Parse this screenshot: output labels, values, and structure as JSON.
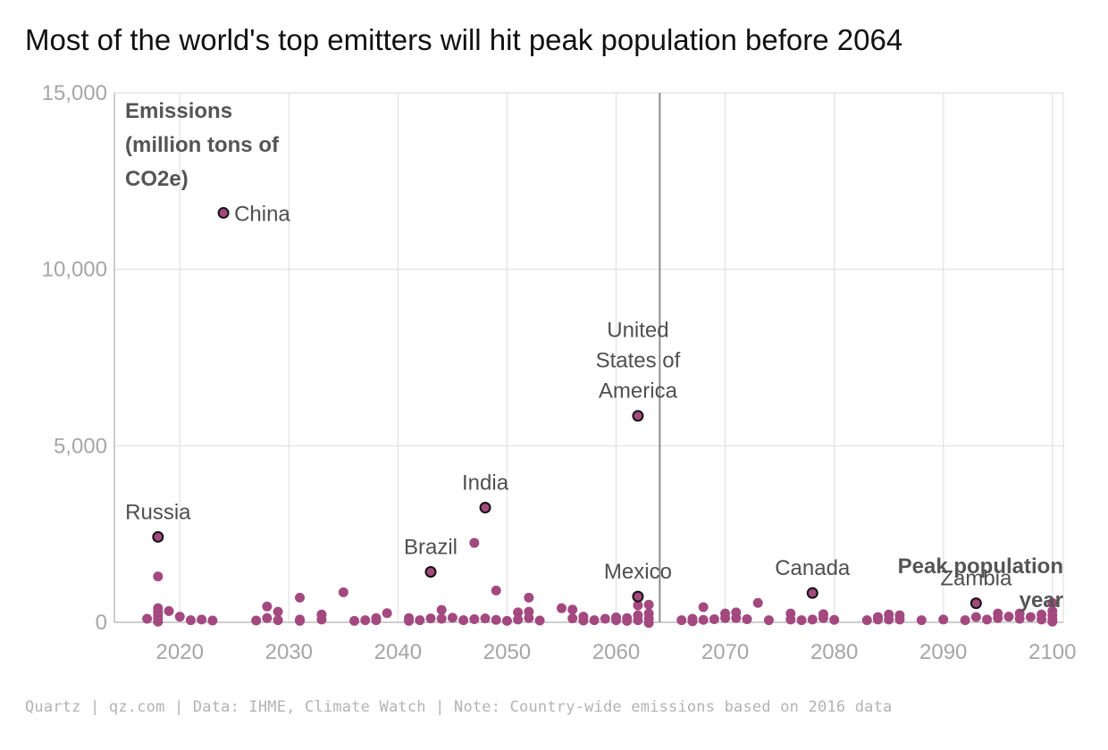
{
  "title": "Most of the world's top emitters will hit peak population before 2064",
  "footer": "Quartz | qz.com | Data: IHME, Climate Watch | Note: Country-wide emissions based on 2016 data",
  "colors": {
    "point": "#a3497f",
    "highlight_point": "#a3497f",
    "highlight_stroke": "#111111",
    "grid": "#e6e6e6",
    "reference_line": "#8c8c8c"
  },
  "chart_data": {
    "type": "scatter",
    "title": "Most of the world's top emitters will hit peak population before 2064",
    "xlabel": "Peak population year",
    "ylabel": "Emissions (million tons of CO2e)",
    "ylabel_lines": [
      "Emissions",
      "(million tons of",
      "CO2e)"
    ],
    "xlabel_lines": [
      "Peak population",
      "year"
    ],
    "xlim": [
      2014,
      2101
    ],
    "ylim": [
      0,
      15000
    ],
    "x_ticks": [
      2020,
      2030,
      2040,
      2050,
      2060,
      2070,
      2080,
      2090,
      2100
    ],
    "y_ticks": [
      0,
      5000,
      10000,
      15000
    ],
    "y_tick_labels": [
      "0",
      "5,000",
      "10,000",
      "15,000"
    ],
    "grid": true,
    "reference_line_x": 2064,
    "highlighted": [
      {
        "name": "China",
        "x": 2024,
        "y": 11600,
        "label_lines": [
          "China"
        ],
        "label_side": "right"
      },
      {
        "name": "United States of America",
        "x": 2062,
        "y": 5850,
        "label_lines": [
          "United",
          "States of",
          "America"
        ],
        "label_side": "above"
      },
      {
        "name": "India",
        "x": 2048,
        "y": 3250,
        "label_lines": [
          "India"
        ],
        "label_side": "above"
      },
      {
        "name": "Russia",
        "x": 2018,
        "y": 2420,
        "label_lines": [
          "Russia"
        ],
        "label_side": "above"
      },
      {
        "name": "Brazil",
        "x": 2043,
        "y": 1430,
        "label_lines": [
          "Brazil"
        ],
        "label_side": "above"
      },
      {
        "name": "Mexico",
        "x": 2062,
        "y": 730,
        "label_lines": [
          "Mexico"
        ],
        "label_side": "above"
      },
      {
        "name": "Canada",
        "x": 2078,
        "y": 830,
        "label_lines": [
          "Canada"
        ],
        "label_side": "above"
      },
      {
        "name": "Zambia",
        "x": 2093,
        "y": 540,
        "label_lines": [
          "Zambia"
        ],
        "label_side": "above"
      }
    ],
    "points": [
      [
        2017,
        100
      ],
      [
        2018,
        1300
      ],
      [
        2018,
        400
      ],
      [
        2018,
        300
      ],
      [
        2018,
        200
      ],
      [
        2018,
        100
      ],
      [
        2018,
        20
      ],
      [
        2019,
        320
      ],
      [
        2020,
        160
      ],
      [
        2021,
        60
      ],
      [
        2022,
        80
      ],
      [
        2023,
        50
      ],
      [
        2027,
        50
      ],
      [
        2028,
        450
      ],
      [
        2028,
        120
      ],
      [
        2029,
        300
      ],
      [
        2029,
        60
      ],
      [
        2031,
        700
      ],
      [
        2031,
        80
      ],
      [
        2031,
        40
      ],
      [
        2033,
        220
      ],
      [
        2033,
        80
      ],
      [
        2035,
        850
      ],
      [
        2036,
        40
      ],
      [
        2037,
        60
      ],
      [
        2038,
        120
      ],
      [
        2038,
        60
      ],
      [
        2039,
        260
      ],
      [
        2041,
        120
      ],
      [
        2041,
        40
      ],
      [
        2042,
        60
      ],
      [
        2043,
        110
      ],
      [
        2044,
        350
      ],
      [
        2044,
        100
      ],
      [
        2045,
        130
      ],
      [
        2046,
        60
      ],
      [
        2047,
        2250
      ],
      [
        2047,
        90
      ],
      [
        2048,
        110
      ],
      [
        2049,
        900
      ],
      [
        2049,
        70
      ],
      [
        2050,
        40
      ],
      [
        2051,
        280
      ],
      [
        2051,
        80
      ],
      [
        2052,
        700
      ],
      [
        2052,
        300
      ],
      [
        2052,
        120
      ],
      [
        2053,
        50
      ],
      [
        2055,
        400
      ],
      [
        2056,
        360
      ],
      [
        2056,
        110
      ],
      [
        2057,
        160
      ],
      [
        2057,
        50
      ],
      [
        2058,
        60
      ],
      [
        2059,
        100
      ],
      [
        2060,
        140
      ],
      [
        2060,
        60
      ],
      [
        2061,
        120
      ],
      [
        2061,
        40
      ],
      [
        2062,
        480
      ],
      [
        2062,
        200
      ],
      [
        2062,
        60
      ],
      [
        2063,
        500
      ],
      [
        2063,
        250
      ],
      [
        2063,
        100
      ],
      [
        2063,
        -20
      ],
      [
        2066,
        60
      ],
      [
        2067,
        100
      ],
      [
        2067,
        30
      ],
      [
        2068,
        430
      ],
      [
        2068,
        70
      ],
      [
        2069,
        90
      ],
      [
        2070,
        250
      ],
      [
        2070,
        120
      ],
      [
        2071,
        280
      ],
      [
        2071,
        120
      ],
      [
        2072,
        90
      ],
      [
        2073,
        550
      ],
      [
        2074,
        60
      ],
      [
        2076,
        250
      ],
      [
        2076,
        80
      ],
      [
        2077,
        60
      ],
      [
        2078,
        80
      ],
      [
        2079,
        230
      ],
      [
        2079,
        120
      ],
      [
        2080,
        70
      ],
      [
        2083,
        60
      ],
      [
        2084,
        150
      ],
      [
        2084,
        80
      ],
      [
        2085,
        220
      ],
      [
        2085,
        80
      ],
      [
        2086,
        200
      ],
      [
        2086,
        80
      ],
      [
        2088,
        60
      ],
      [
        2090,
        80
      ],
      [
        2092,
        60
      ],
      [
        2093,
        150
      ],
      [
        2094,
        80
      ],
      [
        2095,
        250
      ],
      [
        2095,
        120
      ],
      [
        2096,
        160
      ],
      [
        2097,
        250
      ],
      [
        2097,
        100
      ],
      [
        2098,
        150
      ],
      [
        2099,
        220
      ],
      [
        2099,
        80
      ],
      [
        2100,
        550
      ],
      [
        2100,
        320
      ],
      [
        2100,
        200
      ],
      [
        2100,
        80
      ],
      [
        2100,
        20
      ]
    ]
  }
}
